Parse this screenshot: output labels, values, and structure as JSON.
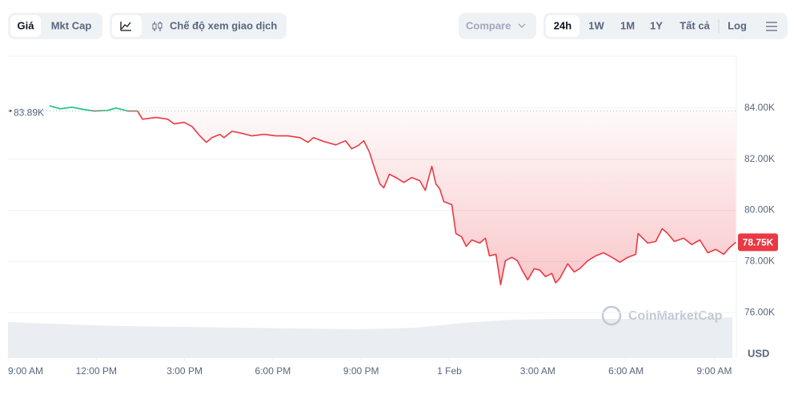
{
  "toolbar": {
    "tabs": [
      "Giá",
      "Mkt Cap"
    ],
    "mode": "Chế độ xem giao dịch",
    "compare": "Compare",
    "ranges": [
      "24h",
      "1W",
      "1M",
      "1Y",
      "Tất cả"
    ],
    "log": "Log"
  },
  "chart_data": {
    "type": "line",
    "currency": "USD",
    "watermark": "CoinMarketCap",
    "up_color": "#16c784",
    "down_color": "#ea3943",
    "grid": true,
    "reference": {
      "value": 83890,
      "label": "83.89K"
    },
    "current_price": {
      "value": 78750,
      "label": "78.75K"
    },
    "xlim": [
      0,
      24.75
    ],
    "xticks": [
      {
        "value": 0,
        "label": "9:00 AM"
      },
      {
        "value": 3,
        "label": "12:00 PM"
      },
      {
        "value": 6,
        "label": "3:00 PM"
      },
      {
        "value": 9,
        "label": "6:00 PM"
      },
      {
        "value": 12,
        "label": "9:00 PM"
      },
      {
        "value": 15,
        "label": "1 Feb"
      },
      {
        "value": 18,
        "label": "3:00 AM"
      },
      {
        "value": 21,
        "label": "6:00 AM"
      },
      {
        "value": 24,
        "label": "9:00 AM"
      }
    ],
    "ylim": [
      74220,
      86030
    ],
    "yticks": [
      {
        "value": 76000,
        "label": "76.00K"
      },
      {
        "value": 78000,
        "label": "78.00K"
      },
      {
        "value": 80000,
        "label": "80.00K"
      },
      {
        "value": 82000,
        "label": "82.00K"
      },
      {
        "value": 84000,
        "label": "84.00K"
      }
    ],
    "x": [
      1.41,
      1.77,
      2.17,
      2.58,
      2.93,
      3.4,
      3.67,
      4.08,
      4.4,
      4.57,
      5.03,
      5.43,
      5.65,
      5.98,
      6.25,
      6.52,
      6.74,
      6.93,
      7.2,
      7.34,
      7.61,
      7.88,
      8.29,
      8.7,
      9.1,
      9.51,
      9.92,
      10.19,
      10.38,
      10.73,
      11.14,
      11.47,
      11.68,
      11.9,
      12.09,
      12.28,
      12.45,
      12.64,
      12.77,
      12.96,
      13.18,
      13.45,
      13.72,
      13.99,
      14.18,
      14.4,
      14.54,
      14.67,
      14.81,
      15.08,
      15.22,
      15.41,
      15.57,
      15.76,
      16.03,
      16.22,
      16.36,
      16.58,
      16.74,
      16.9,
      17.12,
      17.31,
      17.47,
      17.66,
      17.88,
      18.07,
      18.26,
      18.48,
      18.61,
      18.75,
      19.02,
      19.24,
      19.43,
      19.7,
      19.97,
      20.24,
      20.52,
      20.79,
      21.06,
      21.33,
      21.41,
      21.74,
      22.01,
      22.23,
      22.42,
      22.64,
      22.96,
      23.23,
      23.51,
      23.78,
      24.05,
      24.32,
      24.51,
      24.73
    ],
    "values": [
      84090,
      83970,
      84030,
      83940,
      83880,
      83910,
      84000,
      83880,
      83880,
      83560,
      83630,
      83560,
      83380,
      83440,
      83280,
      82910,
      82660,
      82840,
      82970,
      82840,
      83090,
      83030,
      82910,
      82970,
      82910,
      82910,
      82840,
      82660,
      82840,
      82690,
      82560,
      82720,
      82410,
      82530,
      82720,
      82280,
      81660,
      81030,
      80880,
      81410,
      81280,
      81090,
      81280,
      81160,
      80780,
      81720,
      81030,
      80840,
      80340,
      80220,
      79090,
      78970,
      78590,
      78840,
      78720,
      78910,
      78220,
      78280,
      77090,
      78030,
      78160,
      78030,
      77660,
      77280,
      77720,
      77660,
      77410,
      77530,
      77160,
      77340,
      77910,
      77590,
      77720,
      78030,
      78220,
      78340,
      78160,
      77970,
      78160,
      78280,
      79090,
      78720,
      78780,
      79280,
      79090,
      78780,
      78910,
      78660,
      78840,
      78340,
      78470,
      78280,
      78530,
      78750
    ]
  }
}
